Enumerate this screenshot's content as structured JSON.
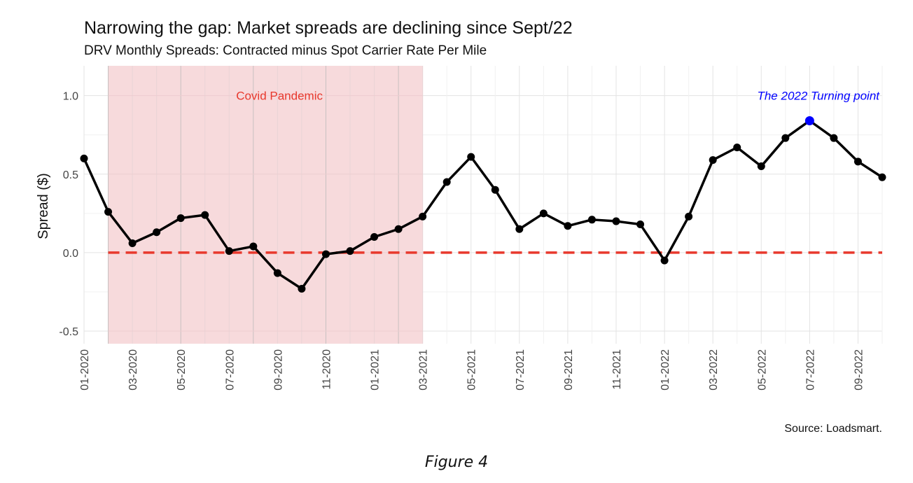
{
  "chart_data": {
    "type": "line",
    "title": "Narrowing the gap: Market spreads are declining since Sept/22",
    "subtitle": "DRV Monthly Spreads: Contracted minus Spot Carrier Rate Per Mile",
    "xlabel": "",
    "ylabel": "Spread ($)",
    "ylim": [
      -0.58,
      1.19
    ],
    "yticks": [
      -0.5,
      0.0,
      0.5,
      1.0
    ],
    "ytick_labels": [
      "-0.5",
      "0.0",
      "0.5",
      "1.0"
    ],
    "x": [
      "01-2020",
      "02-2020",
      "03-2020",
      "04-2020",
      "05-2020",
      "06-2020",
      "07-2020",
      "08-2020",
      "09-2020",
      "10-2020",
      "11-2020",
      "12-2020",
      "01-2021",
      "02-2021",
      "03-2021",
      "04-2021",
      "05-2021",
      "06-2021",
      "07-2021",
      "08-2021",
      "09-2021",
      "10-2021",
      "11-2021",
      "12-2021",
      "01-2022",
      "02-2022",
      "03-2022",
      "04-2022",
      "05-2022",
      "06-2022",
      "07-2022",
      "08-2022",
      "09-2022",
      "10-2022"
    ],
    "xtick_labels": [
      "01-2020",
      "03-2020",
      "05-2020",
      "07-2020",
      "09-2020",
      "11-2020",
      "01-2021",
      "03-2021",
      "05-2021",
      "07-2021",
      "09-2021",
      "11-2021",
      "01-2022",
      "03-2022",
      "05-2022",
      "07-2022",
      "09-2022"
    ],
    "series": [
      {
        "values": [
          0.6,
          0.26,
          0.06,
          0.13,
          0.22,
          0.24,
          0.01,
          0.04,
          -0.13,
          -0.23,
          -0.01,
          0.01,
          0.1,
          0.15,
          0.23,
          0.45,
          0.61,
          0.4,
          0.15,
          0.25,
          0.17,
          0.21,
          0.2,
          0.18,
          -0.05,
          0.23,
          0.59,
          0.67,
          0.55,
          0.73,
          0.84,
          0.73,
          0.58,
          0.48
        ],
        "color": "#000000"
      }
    ],
    "reference_line": {
      "y": 0.0,
      "color": "#e8392d",
      "style": "dashed"
    },
    "shaded_region": {
      "label": "Covid Pandemic",
      "start": "02-2020",
      "end": "03-2021",
      "fill": "#f7dadc",
      "label_color": "#e8392d"
    },
    "highlight_point": {
      "x": "07-2022",
      "y": 0.84,
      "color": "#0000ff",
      "label": "The 2022 Turning point",
      "label_color": "#0000ff"
    },
    "grid": true,
    "legend": "none"
  },
  "source": "Source: Loadsmart.",
  "caption": "Figure 4"
}
